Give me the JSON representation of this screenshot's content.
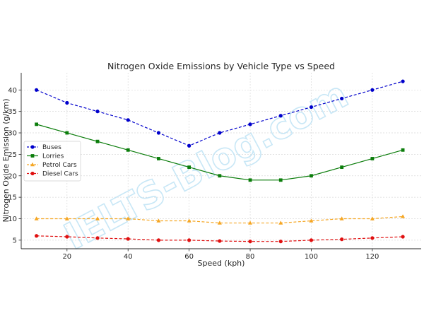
{
  "watermark": "IELTS-Blog.com",
  "chart_data": {
    "type": "line",
    "title": "Nitrogen Oxide Emissions by Vehicle Type vs Speed",
    "xlabel": "Speed (kph)",
    "ylabel": "Nitrogen Oxide Emission (g/km)",
    "x": [
      10,
      20,
      30,
      40,
      50,
      60,
      70,
      80,
      90,
      100,
      110,
      120,
      130
    ],
    "xlim": [
      5,
      136
    ],
    "ylim": [
      3,
      44
    ],
    "xticks": [
      20,
      40,
      60,
      80,
      100,
      120
    ],
    "yticks": [
      5,
      10,
      15,
      20,
      25,
      30,
      35,
      40
    ],
    "grid": true,
    "legend_position": "center-left",
    "series": [
      {
        "name": "Buses",
        "color": "#0000cc",
        "linestyle": "dashed",
        "marker": "circle",
        "values": [
          40,
          37,
          35,
          33,
          30,
          27,
          30,
          32,
          34,
          36,
          38,
          40,
          42
        ]
      },
      {
        "name": "Lorries",
        "color": "#0b7d0b",
        "linestyle": "solid",
        "marker": "square",
        "values": [
          32,
          30,
          28,
          26,
          24,
          22,
          20,
          19,
          19,
          20,
          22,
          24,
          26
        ]
      },
      {
        "name": "Petrol Cars",
        "color": "#f5a623",
        "linestyle": "dashed",
        "marker": "triangle",
        "values": [
          10,
          10,
          10,
          10,
          9.5,
          9.5,
          9,
          9,
          9,
          9.5,
          10,
          10,
          10.5
        ]
      },
      {
        "name": "Diesel Cars",
        "color": "#e01010",
        "linestyle": "dashed",
        "marker": "circle",
        "values": [
          6,
          5.8,
          5.5,
          5.3,
          5,
          5,
          4.8,
          4.7,
          4.7,
          5,
          5.2,
          5.5,
          5.8
        ]
      }
    ]
  }
}
